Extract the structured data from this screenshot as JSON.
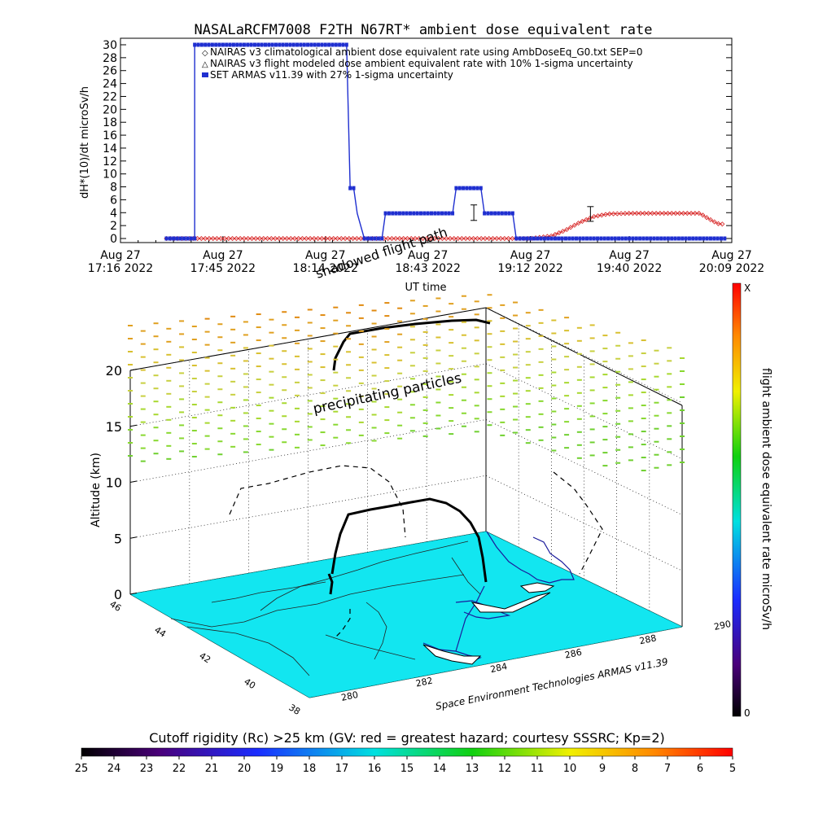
{
  "title": "NASALaRCFM7008  F2TH N67RT* ambient dose equivalent rate",
  "top_chart": {
    "ylabel": "dH*(10)/dt microSv/h",
    "xlabel": "UT time",
    "legend": [
      "NAIRAS v3 climatological ambient dose equivalent rate using AmbDoseEq_G0.txt SEP=0",
      "NAIRAS v3 flight modeled dose ambient equivalent rate with 10% 1-sigma uncertainty",
      "SET ARMAS v11.39 with 27% 1-sigma uncertainty"
    ],
    "x_ticks": [
      {
        "l1": "Aug 27",
        "l2": "17:16 2022"
      },
      {
        "l1": "Aug 27",
        "l2": "17:45 2022"
      },
      {
        "l1": "Aug 27",
        "l2": "18:14 2022"
      },
      {
        "l1": "Aug 27",
        "l2": "18:43 2022"
      },
      {
        "l1": "Aug 27",
        "l2": "19:12 2022"
      },
      {
        "l1": "Aug 27",
        "l2": "19:40 2022"
      },
      {
        "l1": "Aug 27",
        "l2": "20:09 2022"
      }
    ],
    "y_ticks": [
      "0",
      "2",
      "4",
      "6",
      "8",
      "10",
      "12",
      "14",
      "16",
      "18",
      "20",
      "22",
      "24",
      "26",
      "28",
      "30"
    ]
  },
  "chart_data": [
    {
      "type": "line",
      "title": "NASALaRCFM7008  F2TH N67RT* ambient dose equivalent rate",
      "xlabel": "UT time",
      "ylabel": "dH*(10)/dt microSv/h",
      "x_range": [
        "2022-08-27 17:16",
        "2022-08-27 20:09"
      ],
      "ylim": [
        0,
        30
      ],
      "series": [
        {
          "name": "NAIRAS v3 climatological ambient dose equivalent rate using AmbDoseEq_G0.txt SEP=0",
          "color": "#d62020",
          "x": [
            "17:29",
            "17:45",
            "18:00",
            "18:14",
            "18:29",
            "18:43",
            "18:58",
            "19:12",
            "19:18",
            "19:22",
            "19:26",
            "19:30",
            "19:34",
            "19:40",
            "19:50",
            "20:00",
            "20:02",
            "20:05",
            "20:07"
          ],
          "y": [
            0,
            0,
            0,
            0,
            0,
            0,
            0,
            0,
            0.4,
            1.3,
            2.5,
            3.4,
            3.8,
            3.9,
            3.9,
            3.9,
            3.2,
            2.3,
            2.2
          ]
        },
        {
          "name": "NAIRAS v3 flight modeled dose ambient equivalent rate with 10% 1-sigma uncertainty",
          "color": "#000000",
          "x": [
            "18:56",
            "19:29"
          ],
          "y": [
            4.0,
            3.8
          ]
        },
        {
          "name": "SET ARMAS v11.39 with 27% 1-sigma uncertainty",
          "color": "#1f2fd0",
          "x": [
            "17:29",
            "17:37",
            "17:37",
            "18:20",
            "18:21",
            "18:22",
            "18:23",
            "18:25",
            "18:30",
            "18:31",
            "18:50",
            "18:51",
            "18:58",
            "18:59",
            "19:07",
            "19:08",
            "19:20",
            "20:07"
          ],
          "y": [
            0,
            0,
            30,
            30,
            7.8,
            7.8,
            3.9,
            0,
            0,
            3.9,
            3.9,
            7.8,
            7.8,
            3.9,
            3.9,
            0,
            0,
            0
          ]
        }
      ]
    },
    {
      "type": "scatter",
      "title": "",
      "xlabel": "",
      "ylabel": "Altitude (km)",
      "zlim": [
        0,
        20
      ],
      "z_ticks": [
        "0",
        "5",
        "10",
        "15",
        "20"
      ],
      "lat_ticks": [
        "38",
        "40",
        "42",
        "44",
        "46"
      ],
      "lon_ticks": [
        "280",
        "282",
        "284",
        "286",
        "288",
        "290"
      ]
    }
  ],
  "annotations": {
    "shadowed_flight_path": "shadowed flight path",
    "precipitating_particles": "precipitating particles",
    "credit": "Space Environment Technologies ARMAS v11.39"
  },
  "right_colorbar": {
    "label": "flight ambient dose equivalent rate microSv/h",
    "top": "X",
    "bottom": "0"
  },
  "bottom_colorbar": {
    "label": "Cutoff rigidity (Rc) >25 km (GV: red = greatest hazard; courtesy SSSRC; Kp=2)",
    "ticks": [
      "25",
      "24",
      "23",
      "22",
      "21",
      "20",
      "19",
      "18",
      "17",
      "16",
      "15",
      "14",
      "13",
      "12",
      "11",
      "10",
      "9",
      "8",
      "7",
      "6",
      "5"
    ]
  },
  "colors": {
    "nairas_clim": "#d62020",
    "armas": "#1f2fd0",
    "map_fill": "#12e6f0"
  }
}
